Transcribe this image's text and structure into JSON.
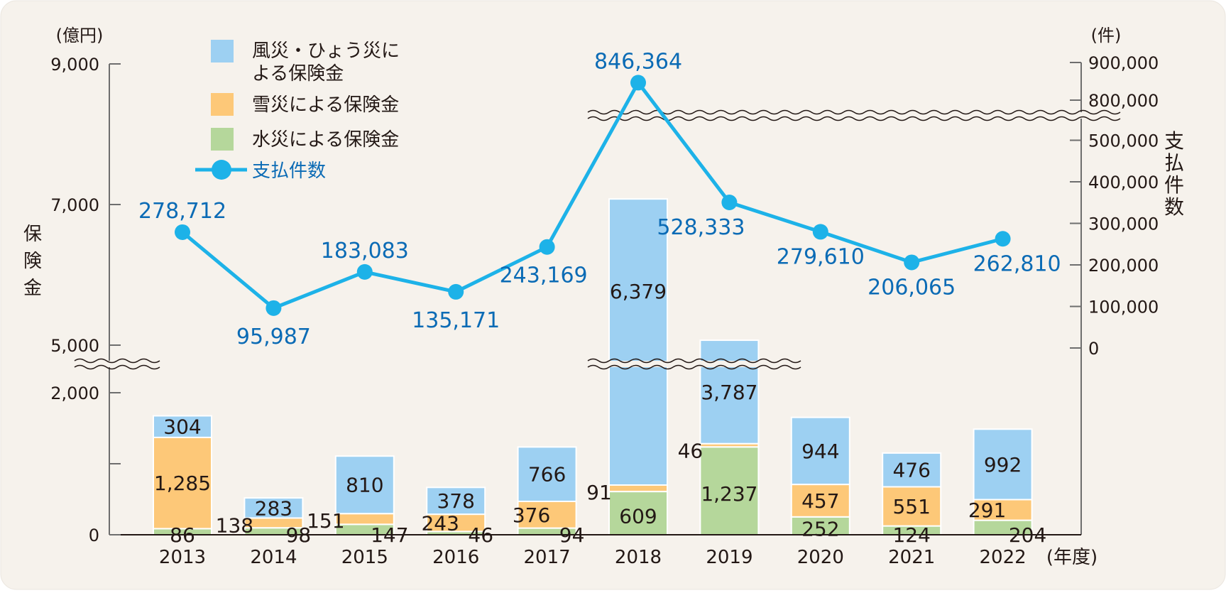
{
  "chart_data": {
    "type": "bar",
    "categories": [
      "2013",
      "2014",
      "2015",
      "2016",
      "2017",
      "2018",
      "2019",
      "2020",
      "2021",
      "2022"
    ],
    "x_unit": "(年度)",
    "left_axis": {
      "unit": "(億円)",
      "label": "保険金",
      "ticks": [
        "0",
        "",
        "2,000",
        "5,000",
        "7,000",
        "9,000"
      ],
      "tick_values": [
        0,
        1000,
        2000,
        5000,
        7000,
        9000
      ],
      "break": [
        2000,
        5000
      ]
    },
    "right_axis": {
      "unit": "(件)",
      "label": "支払件数",
      "ticks": [
        "0",
        "100,000",
        "200,000",
        "300,000",
        "400,000",
        "500,000",
        "800,000",
        "900,000"
      ],
      "tick_values": [
        0,
        100000,
        200000,
        300000,
        400000,
        500000,
        800000,
        900000
      ],
      "break": [
        500000,
        800000
      ]
    },
    "series": [
      {
        "name": "水災による保険金",
        "kind": "bar",
        "color": "#b5d79b",
        "values": [
          86,
          98,
          147,
          46,
          94,
          609,
          1237,
          252,
          124,
          204
        ]
      },
      {
        "name": "雪災による保険金",
        "kind": "bar",
        "color": "#fdc878",
        "values": [
          1285,
          138,
          151,
          243,
          376,
          91,
          46,
          457,
          551,
          291
        ]
      },
      {
        "name": "風災・ひょう災による保険金",
        "kind": "bar",
        "color": "#9dd0f2",
        "values": [
          304,
          283,
          810,
          378,
          766,
          6379,
          3787,
          944,
          476,
          992
        ]
      },
      {
        "name": "支払件数",
        "kind": "line",
        "color": "#1db2e8",
        "label_color": "#0b6bb5",
        "values": [
          278712,
          95987,
          183083,
          135171,
          243169,
          846364,
          528333,
          279610,
          206065,
          262810
        ]
      }
    ],
    "value_labels": {
      "water": [
        "86",
        "98",
        "147",
        "46",
        "94",
        "609",
        "1,237",
        "252",
        "124",
        "204"
      ],
      "snow": [
        "1,285",
        "138",
        "151",
        "243",
        "376",
        "91",
        "46",
        "457",
        "551",
        "291"
      ],
      "wind": [
        "304",
        "283",
        "810",
        "378",
        "766",
        "6,379",
        "3,787",
        "944",
        "476",
        "992"
      ],
      "count": [
        "278,712",
        "95,987",
        "183,083",
        "135,171",
        "243,169",
        "846,364",
        "528,333",
        "279,610",
        "206,065",
        "262,810"
      ]
    },
    "legend": {
      "placement": "top-left",
      "items": [
        {
          "line1": "風災・ひょう災に",
          "line2": "よる保険金"
        },
        {
          "line1": "雪災による保険金"
        },
        {
          "line1": "水災による保険金"
        },
        {
          "line1": "支払件数"
        }
      ]
    }
  }
}
